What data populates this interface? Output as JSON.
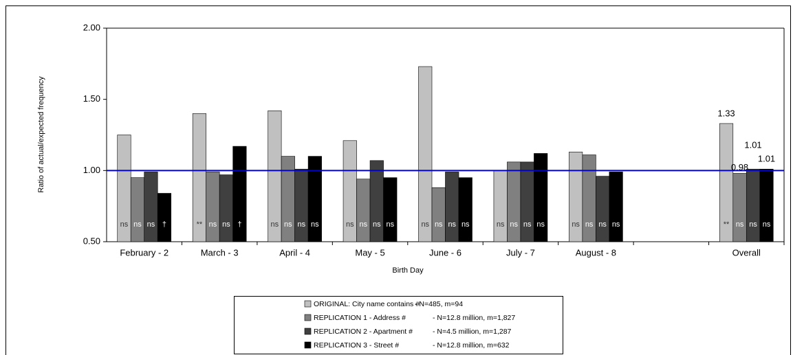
{
  "chart_data": {
    "type": "bar",
    "x_label": "Birth Day",
    "y_label": "Ratio of actual/expected frequency",
    "categories": [
      "February - 2",
      "March - 3",
      "April - 4",
      "May - 5",
      "June - 6",
      "July - 7",
      "August - 8",
      null,
      "Overall"
    ],
    "ylim": [
      0.5,
      2.0
    ],
    "yticks": [
      {
        "value": 0.5,
        "label": "0.50"
      },
      {
        "value": 1.0,
        "label": "1.00"
      },
      {
        "value": 1.5,
        "label": "1.50"
      },
      {
        "value": 2.0,
        "label": "2.00"
      }
    ],
    "reference_line": {
      "value": 1.0,
      "color": "#0000cc"
    },
    "series": [
      {
        "name": "ORIGINAL: City name contains #",
        "note": "- N=485, m=94",
        "color": "#c0c0c0",
        "values": [
          1.25,
          1.4,
          1.42,
          1.21,
          1.73,
          1.0,
          1.13,
          null,
          1.33
        ],
        "value_labels": [
          null,
          null,
          null,
          null,
          null,
          null,
          null,
          null,
          "1.33"
        ],
        "annotations": [
          "ns",
          "**",
          "ns",
          "ns",
          "ns",
          "ns",
          "ns",
          null,
          "**"
        ]
      },
      {
        "name": "REPLICATION 1 - Address #",
        "note": "- N=12.8 million, m=1,827",
        "color": "#808080",
        "values": [
          0.95,
          0.99,
          1.1,
          0.94,
          0.88,
          1.06,
          1.11,
          null,
          0.98
        ],
        "value_labels": [
          null,
          null,
          null,
          null,
          null,
          null,
          null,
          null,
          "0.98"
        ],
        "annotations": [
          "ns",
          "ns",
          "ns",
          "ns",
          "ns",
          "ns",
          "ns",
          null,
          "ns"
        ]
      },
      {
        "name": "REPLICATION 2 - Apartment #",
        "note": "- N=4.5 million, m=1,287",
        "color": "#404040",
        "values": [
          0.99,
          0.97,
          1.01,
          1.07,
          0.99,
          1.06,
          0.96,
          null,
          1.01
        ],
        "value_labels": [
          null,
          null,
          null,
          null,
          null,
          null,
          null,
          null,
          "1.01"
        ],
        "annotations": [
          "ns",
          "ns",
          "ns",
          "ns",
          "ns",
          "ns",
          "ns",
          null,
          "ns"
        ]
      },
      {
        "name": "REPLICATION 3 - Street #",
        "note": "- N=12.8 million, m=632",
        "color": "#000000",
        "values": [
          0.84,
          1.17,
          1.1,
          0.95,
          0.95,
          1.12,
          0.99,
          null,
          1.01
        ],
        "value_labels": [
          null,
          null,
          null,
          null,
          null,
          null,
          null,
          null,
          "1.01"
        ],
        "annotations": [
          "†",
          "†",
          "ns",
          "ns",
          "ns",
          "ns",
          "ns",
          null,
          "ns"
        ]
      }
    ]
  }
}
